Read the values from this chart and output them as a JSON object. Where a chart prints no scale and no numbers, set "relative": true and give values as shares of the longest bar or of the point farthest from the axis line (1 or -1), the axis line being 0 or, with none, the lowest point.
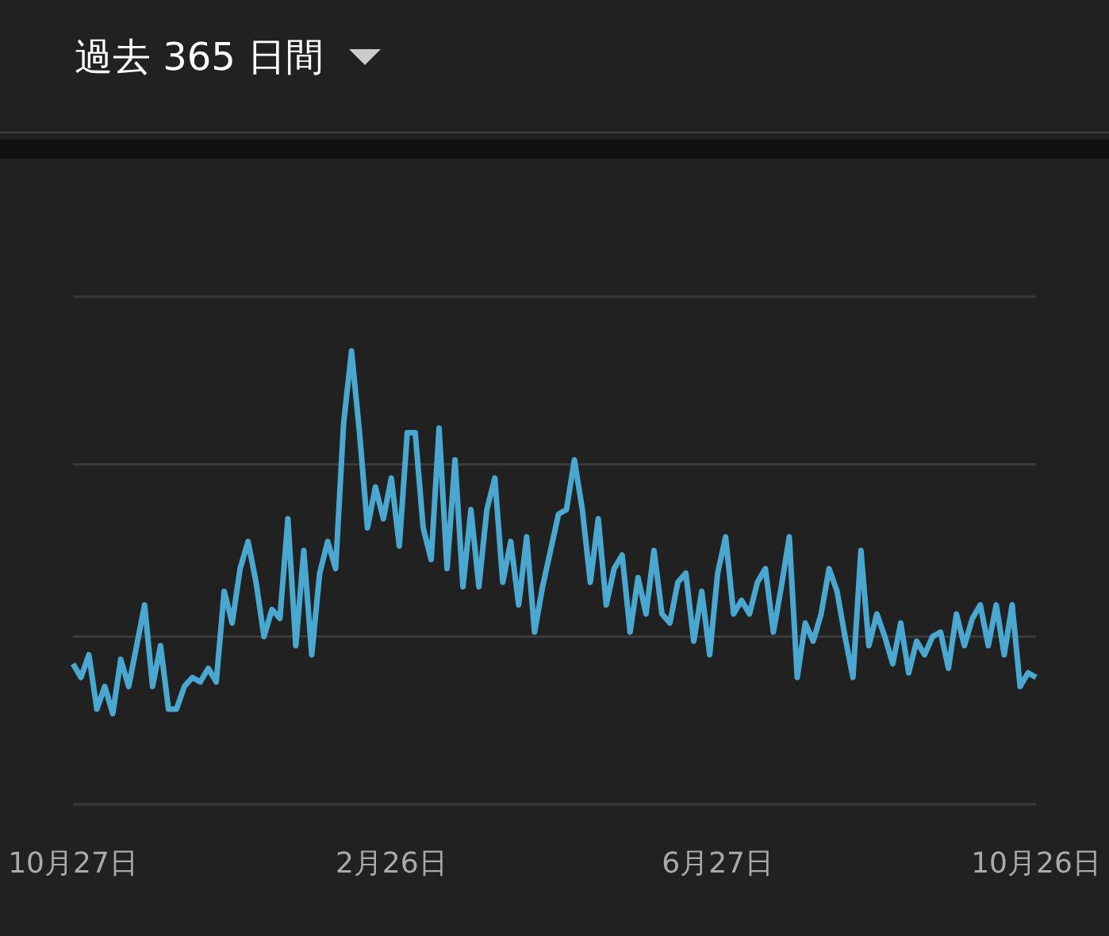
{
  "chart_data": {
    "type": "line",
    "title": "過去 365 日間",
    "relative": true,
    "ref_lines": [
      {
        "axis": "y",
        "value": 0.37,
        "color": "#3a3a3a"
      },
      {
        "axis": "y",
        "value": 0.75,
        "color": "#3a3a3a"
      },
      {
        "axis": "y",
        "value": 1.12,
        "color": "#3a3a3a"
      }
    ],
    "marker": "none",
    "categories": [
      "10月27日",
      null,
      null,
      null,
      null,
      null,
      null,
      null,
      null,
      null,
      null,
      null,
      null,
      null,
      null,
      null,
      null,
      null,
      null,
      null,
      null,
      null,
      null,
      null,
      null,
      null,
      null,
      null,
      null,
      null,
      null,
      null,
      null,
      null,
      null,
      null,
      null,
      null,
      null,
      null,
      "2月26日",
      null,
      null,
      null,
      null,
      null,
      null,
      null,
      null,
      null,
      null,
      null,
      null,
      null,
      null,
      null,
      null,
      null,
      null,
      null,
      null,
      null,
      null,
      null,
      null,
      null,
      null,
      null,
      null,
      null,
      null,
      null,
      null,
      null,
      null,
      null,
      null,
      null,
      null,
      null,
      null,
      "6月27日",
      null,
      null,
      null,
      null,
      null,
      null,
      null,
      null,
      null,
      null,
      null,
      null,
      null,
      null,
      null,
      null,
      null,
      null,
      null,
      null,
      null,
      null,
      null,
      null,
      null,
      null,
      null,
      null,
      null,
      null,
      null,
      null,
      null,
      null,
      null,
      null,
      null,
      null,
      null,
      "10月26日"
    ],
    "series": [
      {
        "color": "#4aa8d0",
        "values": [
          0.31,
          0.28,
          0.33,
          0.21,
          0.26,
          0.2,
          0.32,
          0.26,
          0.35,
          0.44,
          0.26,
          0.35,
          0.21,
          0.21,
          0.26,
          0.28,
          0.27,
          0.3,
          0.27,
          0.47,
          0.4,
          0.52,
          0.58,
          0.49,
          0.37,
          0.43,
          0.41,
          0.63,
          0.35,
          0.56,
          0.33,
          0.51,
          0.58,
          0.52,
          0.84,
          1,
          0.82,
          0.61,
          0.7,
          0.63,
          0.72,
          0.57,
          0.82,
          0.82,
          0.61,
          0.54,
          0.83,
          0.52,
          0.76,
          0.48,
          0.65,
          0.48,
          0.65,
          0.72,
          0.49,
          0.58,
          0.44,
          0.59,
          0.38,
          0.48,
          0.56,
          0.64,
          0.65,
          0.76,
          0.65,
          0.49,
          0.63,
          0.44,
          0.52,
          0.55,
          0.38,
          0.5,
          0.42,
          0.56,
          0.42,
          0.4,
          0.49,
          0.51,
          0.36,
          0.47,
          0.33,
          0.51,
          0.59,
          0.42,
          0.45,
          0.42,
          0.49,
          0.52,
          0.38,
          0.48,
          0.59,
          0.28,
          0.4,
          0.36,
          0.42,
          0.52,
          0.47,
          0.37,
          0.28,
          0.56,
          0.35,
          0.42,
          0.37,
          0.31,
          0.4,
          0.29,
          0.36,
          0.33,
          0.37,
          0.38,
          0.3,
          0.42,
          0.35,
          0.41,
          0.44,
          0.35,
          0.44,
          0.33,
          0.44,
          0.26,
          0.29,
          0.28
        ]
      }
    ]
  }
}
